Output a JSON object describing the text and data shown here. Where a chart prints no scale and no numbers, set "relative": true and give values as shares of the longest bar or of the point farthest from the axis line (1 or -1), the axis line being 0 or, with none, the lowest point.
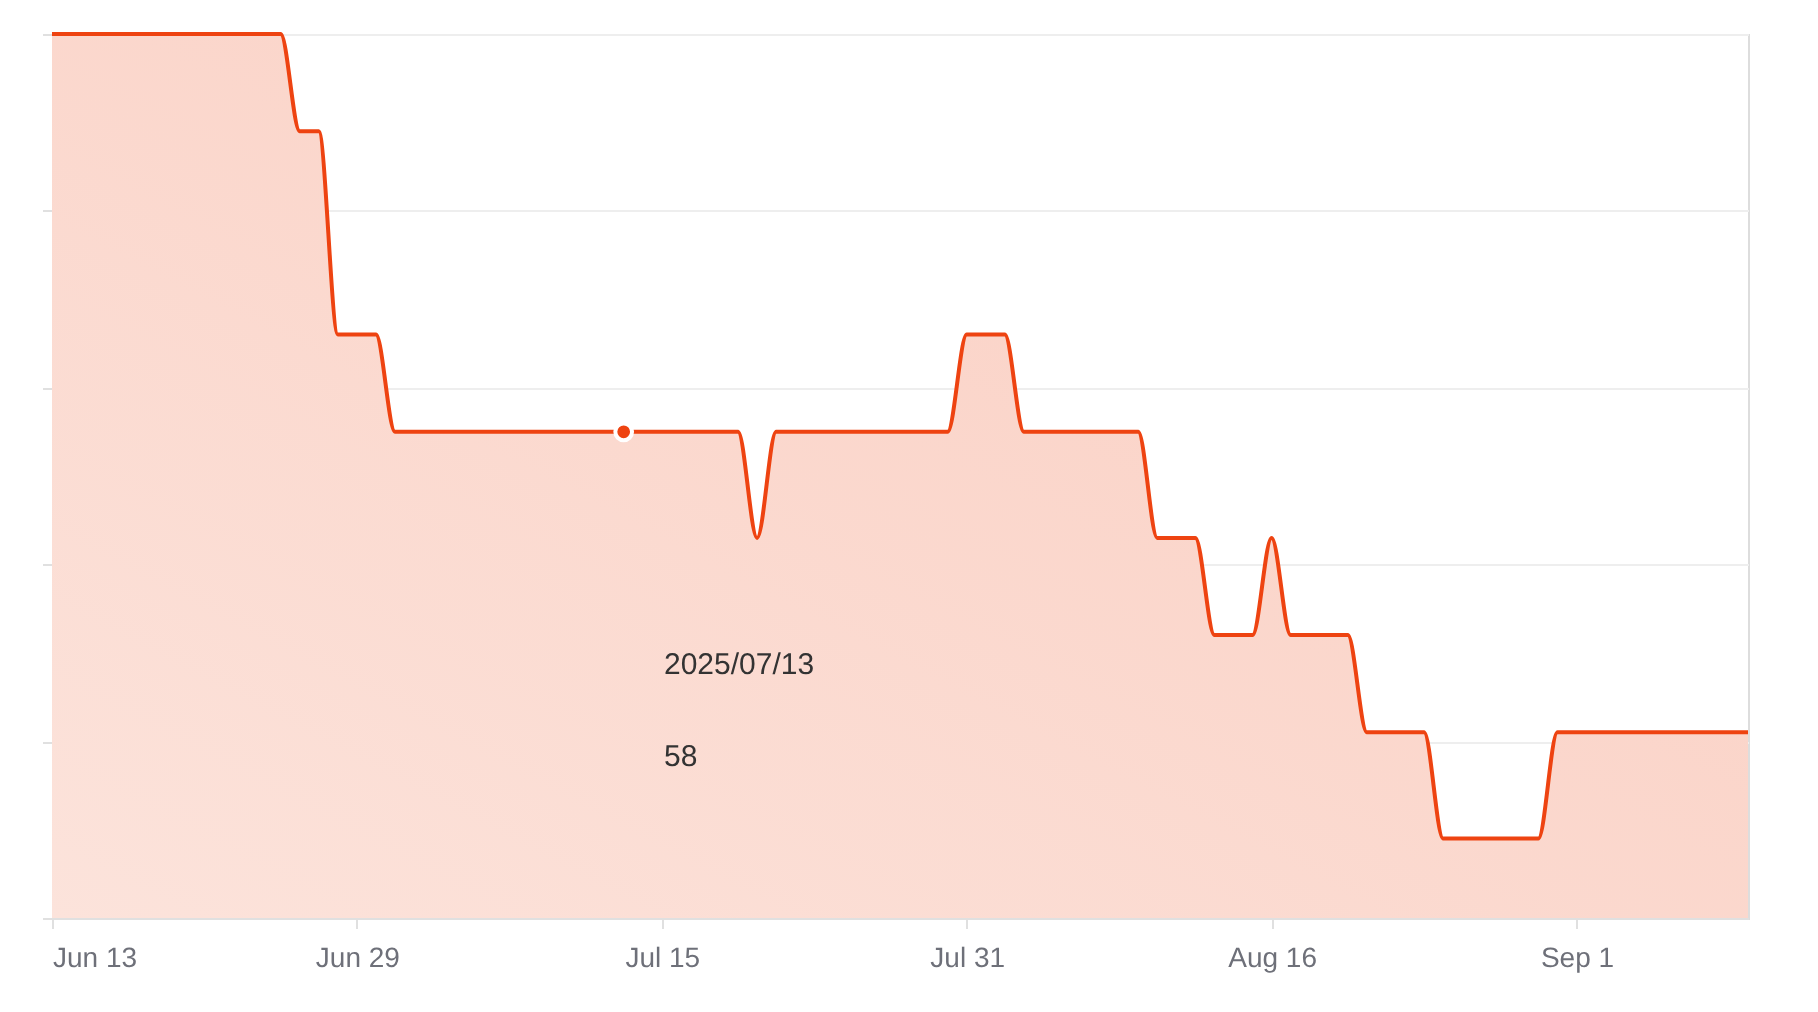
{
  "chart_data": {
    "type": "area",
    "relative": true,
    "x": [
      "2025-06-13",
      "2025-06-14",
      "2025-06-15",
      "2025-06-16",
      "2025-06-17",
      "2025-06-18",
      "2025-06-19",
      "2025-06-20",
      "2025-06-21",
      "2025-06-22",
      "2025-06-23",
      "2025-06-24",
      "2025-06-25",
      "2025-06-26",
      "2025-06-27",
      "2025-06-28",
      "2025-06-29",
      "2025-06-30",
      "2025-07-01",
      "2025-07-02",
      "2025-07-03",
      "2025-07-04",
      "2025-07-05",
      "2025-07-06",
      "2025-07-07",
      "2025-07-08",
      "2025-07-09",
      "2025-07-10",
      "2025-07-11",
      "2025-07-12",
      "2025-07-13",
      "2025-07-14",
      "2025-07-15",
      "2025-07-16",
      "2025-07-17",
      "2025-07-18",
      "2025-07-19",
      "2025-07-20",
      "2025-07-21",
      "2025-07-22",
      "2025-07-23",
      "2025-07-24",
      "2025-07-25",
      "2025-07-26",
      "2025-07-27",
      "2025-07-28",
      "2025-07-29",
      "2025-07-30",
      "2025-07-31",
      "2025-08-01",
      "2025-08-02",
      "2025-08-03",
      "2025-08-04",
      "2025-08-05",
      "2025-08-06",
      "2025-08-07",
      "2025-08-08",
      "2025-08-09",
      "2025-08-10",
      "2025-08-11",
      "2025-08-12",
      "2025-08-13",
      "2025-08-14",
      "2025-08-15",
      "2025-08-16",
      "2025-08-17",
      "2025-08-18",
      "2025-08-19",
      "2025-08-20",
      "2025-08-21",
      "2025-08-22",
      "2025-08-23",
      "2025-08-24",
      "2025-08-25",
      "2025-08-26",
      "2025-08-27",
      "2025-08-28",
      "2025-08-29",
      "2025-08-30",
      "2025-08-31",
      "2025-09-01",
      "2025-09-02",
      "2025-09-03",
      "2025-09-04",
      "2025-09-05",
      "2025-09-06",
      "2025-09-07",
      "2025-09-08",
      "2025-09-09",
      "2025-09-10"
    ],
    "series": [
      {
        "color": "#ee4311",
        "values": [
          1,
          1,
          1,
          1,
          1,
          1,
          1,
          1,
          1,
          1,
          1,
          1,
          1,
          0.89,
          0.89,
          0.66,
          0.66,
          0.66,
          0.55,
          0.55,
          0.55,
          0.55,
          0.55,
          0.55,
          0.55,
          0.55,
          0.55,
          0.55,
          0.55,
          0.55,
          0.55,
          0.55,
          0.55,
          0.55,
          0.55,
          0.55,
          0.55,
          0.43,
          0.55,
          0.55,
          0.55,
          0.55,
          0.55,
          0.55,
          0.55,
          0.55,
          0.55,
          0.55,
          0.66,
          0.66,
          0.66,
          0.55,
          0.55,
          0.55,
          0.55,
          0.55,
          0.55,
          0.55,
          0.43,
          0.43,
          0.43,
          0.32,
          0.32,
          0.32,
          0.43,
          0.32,
          0.32,
          0.32,
          0.32,
          0.21,
          0.21,
          0.21,
          0.21,
          0.09,
          0.09,
          0.09,
          0.09,
          0.09,
          0.09,
          0.21,
          0.21,
          0.21,
          0.21,
          0.21,
          0.21,
          0.21,
          0.21,
          0.21,
          0.21,
          0.21
        ]
      },
      {
        "type": "scatter",
        "marker": "circle",
        "color": "#ee4311",
        "x": [
          "2025-07-13"
        ],
        "values": [
          0.55
        ]
      }
    ],
    "xlim": [
      "2025-06-13",
      "2025-09-10"
    ],
    "xticks": [
      {
        "value": "2025-06-13",
        "label": "Jun 13"
      },
      {
        "value": "2025-06-29",
        "label": "Jun 29"
      },
      {
        "value": "2025-07-15",
        "label": "Jul 15"
      },
      {
        "value": "2025-07-31",
        "label": "Jul 31"
      },
      {
        "value": "2025-08-16",
        "label": "Aug 16"
      },
      {
        "value": "2025-09-01",
        "label": "Sep 1"
      }
    ],
    "grid": "y",
    "annotations": [
      "2025/07/13",
      "58"
    ]
  }
}
